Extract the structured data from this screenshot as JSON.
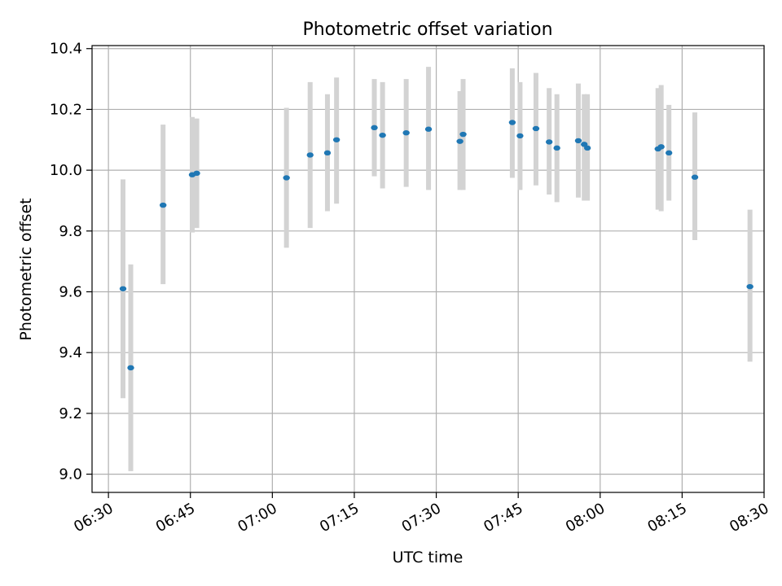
{
  "chart_data": {
    "type": "scatter",
    "title": "Photometric offset variation",
    "xlabel": "UTC time",
    "ylabel": "Photometric offset",
    "xlim": [
      "06:27",
      "08:30"
    ],
    "ylim": [
      8.94,
      10.41
    ],
    "x_ticks": [
      "06:30",
      "06:45",
      "07:00",
      "07:15",
      "07:30",
      "07:45",
      "08:00",
      "08:15",
      "08:30"
    ],
    "y_ticks": [
      "9.0",
      "9.2",
      "9.4",
      "9.6",
      "9.8",
      "10.0",
      "10.2",
      "10.4"
    ],
    "grid": true,
    "colors": {
      "point": "#1f77b4",
      "errorbar": "#d3d3d3",
      "grid": "#b0b0b0"
    },
    "points": [
      {
        "x": "06:32:40",
        "y": 9.61,
        "ylow": 9.25,
        "yhigh": 9.97
      },
      {
        "x": "06:34:05",
        "y": 9.35,
        "ylow": 9.01,
        "yhigh": 9.69
      },
      {
        "x": "06:40:00",
        "y": 9.885,
        "ylow": 9.625,
        "yhigh": 10.15
      },
      {
        "x": "06:45:20",
        "y": 9.985,
        "ylow": 9.795,
        "yhigh": 10.175
      },
      {
        "x": "06:46:10",
        "y": 9.99,
        "ylow": 9.81,
        "yhigh": 10.17
      },
      {
        "x": "07:02:35",
        "y": 9.975,
        "ylow": 9.745,
        "yhigh": 10.205
      },
      {
        "x": "07:06:55",
        "y": 10.05,
        "ylow": 9.81,
        "yhigh": 10.29
      },
      {
        "x": "07:10:05",
        "y": 10.057,
        "ylow": 9.865,
        "yhigh": 10.25
      },
      {
        "x": "07:11:45",
        "y": 10.1,
        "ylow": 9.89,
        "yhigh": 10.305
      },
      {
        "x": "07:18:40",
        "y": 10.14,
        "ylow": 9.98,
        "yhigh": 10.3
      },
      {
        "x": "07:20:10",
        "y": 10.115,
        "ylow": 9.94,
        "yhigh": 10.29
      },
      {
        "x": "07:24:30",
        "y": 10.123,
        "ylow": 9.945,
        "yhigh": 10.3
      },
      {
        "x": "07:28:35",
        "y": 10.135,
        "ylow": 9.935,
        "yhigh": 10.34
      },
      {
        "x": "07:34:20",
        "y": 10.095,
        "ylow": 9.935,
        "yhigh": 10.26
      },
      {
        "x": "07:34:55",
        "y": 10.118,
        "ylow": 9.935,
        "yhigh": 10.3
      },
      {
        "x": "07:43:55",
        "y": 10.157,
        "ylow": 9.975,
        "yhigh": 10.335
      },
      {
        "x": "07:45:20",
        "y": 10.113,
        "ylow": 9.935,
        "yhigh": 10.29
      },
      {
        "x": "07:48:15",
        "y": 10.137,
        "ylow": 9.95,
        "yhigh": 10.32
      },
      {
        "x": "07:50:40",
        "y": 10.093,
        "ylow": 9.92,
        "yhigh": 10.27
      },
      {
        "x": "07:52:05",
        "y": 10.073,
        "ylow": 9.895,
        "yhigh": 10.25
      },
      {
        "x": "07:56:00",
        "y": 10.097,
        "ylow": 9.91,
        "yhigh": 10.285
      },
      {
        "x": "07:57:05",
        "y": 10.085,
        "ylow": 9.9,
        "yhigh": 10.25
      },
      {
        "x": "07:57:40",
        "y": 10.073,
        "ylow": 9.9,
        "yhigh": 10.25
      },
      {
        "x": "08:10:35",
        "y": 10.07,
        "ylow": 9.87,
        "yhigh": 10.27
      },
      {
        "x": "08:11:10",
        "y": 10.077,
        "ylow": 9.865,
        "yhigh": 10.28
      },
      {
        "x": "08:12:35",
        "y": 10.057,
        "ylow": 9.9,
        "yhigh": 10.215
      },
      {
        "x": "08:17:20",
        "y": 9.977,
        "ylow": 9.77,
        "yhigh": 10.19
      },
      {
        "x": "08:27:25",
        "y": 9.617,
        "ylow": 9.37,
        "yhigh": 9.87
      }
    ]
  }
}
